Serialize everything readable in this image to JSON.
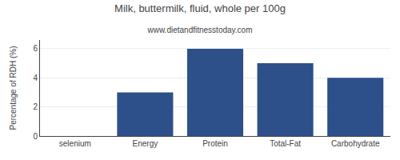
{
  "chart_data": {
    "type": "bar",
    "title": "Milk, buttermilk, fluid, whole per 100g",
    "subtitle": "www.dietandfitnesstoday.com",
    "categories": [
      "selenium",
      "Energy",
      "Protein",
      "Total-Fat",
      "Carbohydrate"
    ],
    "values": [
      0,
      3,
      6,
      5,
      4
    ],
    "color": "#2d4f8a",
    "ylabel": "Percentage of RDH (%)",
    "ylim": [
      0,
      6.6
    ],
    "yticks": [
      0,
      2,
      4,
      6
    ],
    "grid": true
  }
}
